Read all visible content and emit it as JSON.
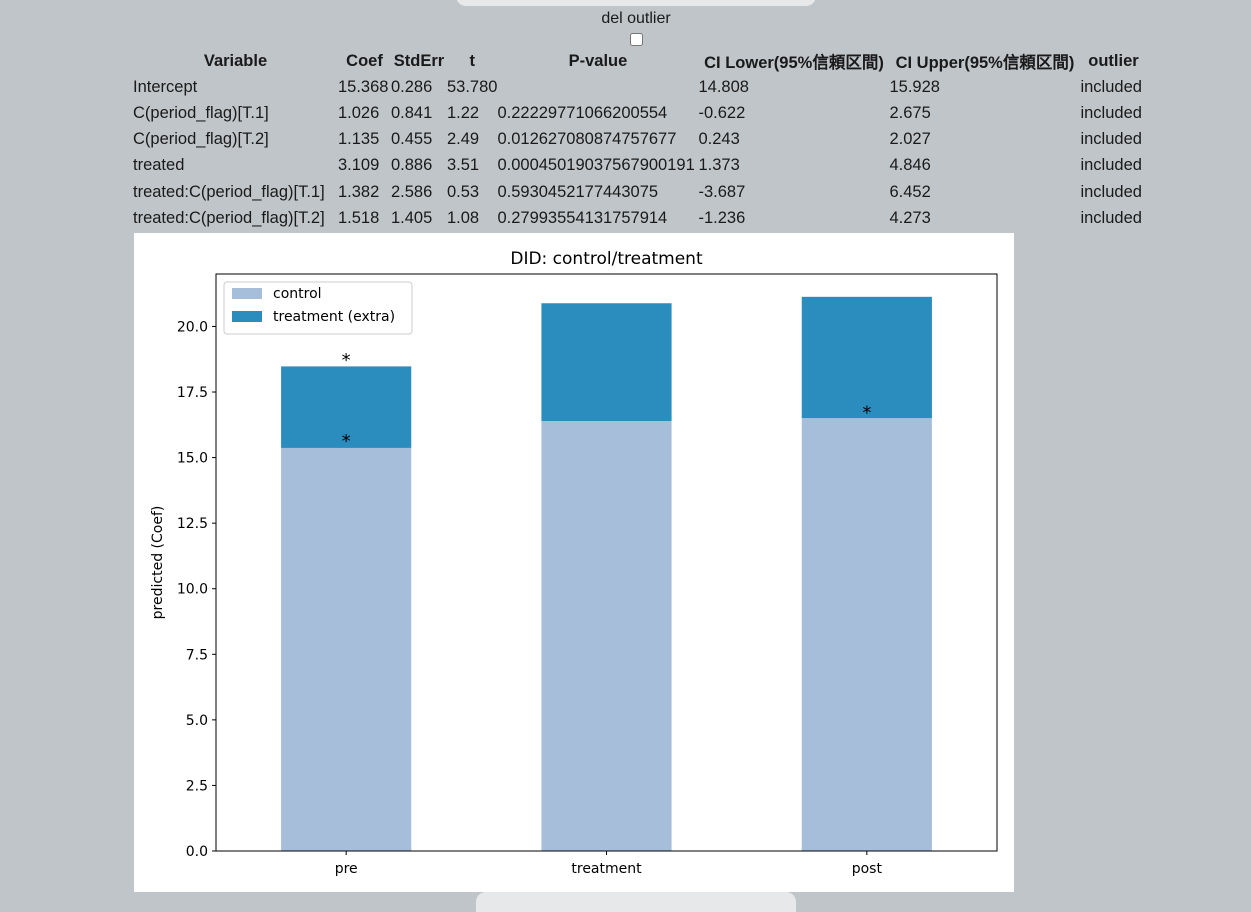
{
  "controls": {
    "outlier_label": "del outlier",
    "outlier_checked": false
  },
  "table": {
    "headers": [
      "Variable",
      "Coef",
      "StdErr",
      "t",
      "P-value",
      "CI Lower(95%信頼区間)",
      "CI Upper(95%信頼区間)",
      "outlier"
    ],
    "rows": [
      [
        "Intercept",
        "15.368",
        "0.286",
        "53.780",
        "",
        "14.808",
        "15.928",
        "included"
      ],
      [
        "C(period_flag)[T.1]",
        "1.026",
        "0.841",
        "1.22",
        "0.22229771066200554",
        "-0.622",
        "2.675",
        "included"
      ],
      [
        "C(period_flag)[T.2]",
        "1.135",
        "0.455",
        "2.49",
        "0.012627080874757677",
        "0.243",
        "2.027",
        "included"
      ],
      [
        "treated",
        "3.109",
        "0.886",
        "3.51",
        "0.00045019037567900191",
        "1.373",
        "4.846",
        "included"
      ],
      [
        "treated:C(period_flag)[T.1]",
        "1.382",
        "2.586",
        "0.53",
        "0.5930452177443075",
        "-3.687",
        "6.452",
        "included"
      ],
      [
        "treated:C(period_flag)[T.2]",
        "1.518",
        "1.405",
        "1.08",
        "0.27993554131757914",
        "-1.236",
        "4.273",
        "included"
      ]
    ]
  },
  "chart_data": {
    "type": "bar",
    "stacked": true,
    "title": "DID: control/treatment",
    "xlabel": "",
    "ylabel": "predicted (Coef)",
    "categories": [
      "pre",
      "treatment",
      "post"
    ],
    "series": [
      {
        "name": "control",
        "values": [
          15.368,
          16.394,
          16.503
        ],
        "color": "#a7bedb"
      },
      {
        "name": "treatment (extra)",
        "values": [
          3.109,
          4.491,
          4.627
        ],
        "color": "#2b8cbe"
      }
    ],
    "annotations": [
      {
        "category": "pre",
        "text": "*",
        "y": 18.8
      },
      {
        "category": "pre",
        "text": "*",
        "y": 15.7
      },
      {
        "category": "post",
        "text": "*",
        "y": 16.8
      }
    ],
    "ylim": [
      0,
      22
    ],
    "yticks": [
      "0.0",
      "2.5",
      "5.0",
      "7.5",
      "10.0",
      "12.5",
      "15.0",
      "17.5",
      "20.0"
    ],
    "legend": "upper-left",
    "grid": false
  }
}
